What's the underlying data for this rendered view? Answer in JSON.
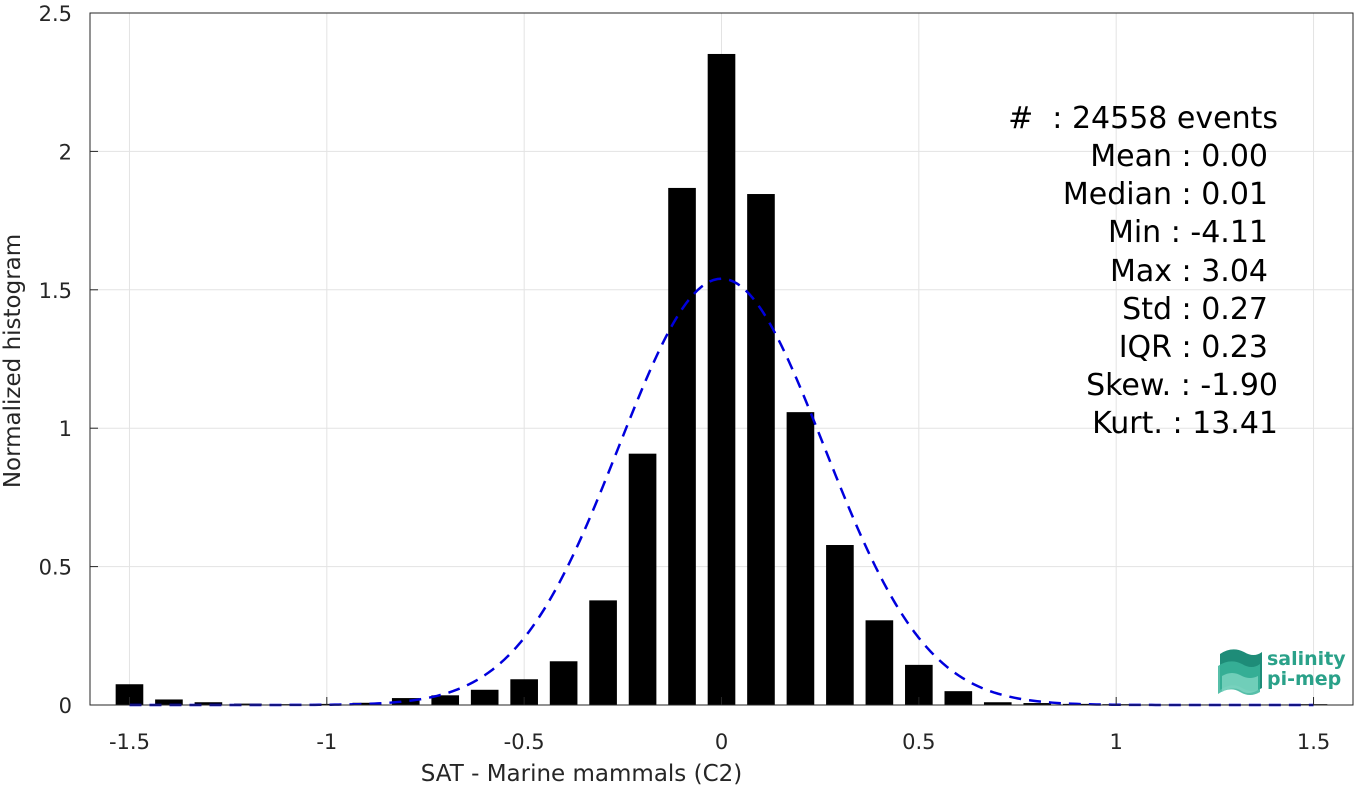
{
  "chart_data": {
    "type": "bar",
    "xlabel": "SAT - Marine mammals (C2)",
    "ylabel": "Normalized histogram",
    "xlim": [
      -1.6,
      1.6
    ],
    "ylim": [
      0,
      2.5
    ],
    "xticks": [
      -1.5,
      -1,
      -0.5,
      0,
      0.5,
      1,
      1.5
    ],
    "xtick_labels": [
      "-1.5",
      "-1",
      "-0.5",
      "0",
      "0.5",
      "1",
      "1.5"
    ],
    "yticks": [
      0,
      0.5,
      1,
      1.5,
      2,
      2.5
    ],
    "ytick_labels": [
      "0",
      "0.5",
      "1",
      "1.5",
      "2",
      "2.5"
    ],
    "grid": true,
    "bin_width": 0.1,
    "bars": {
      "x": [
        -1.5,
        -1.4,
        -1.3,
        -1.2,
        -1.1,
        -1.0,
        -0.9,
        -0.8,
        -0.7,
        -0.6,
        -0.5,
        -0.4,
        -0.3,
        -0.2,
        -0.1,
        0.0,
        0.1,
        0.2,
        0.3,
        0.4,
        0.5,
        0.6,
        0.7,
        0.8,
        0.9,
        1.0,
        1.1,
        1.2,
        1.3,
        1.4,
        1.5
      ],
      "values": [
        0.075,
        0.02,
        0.01,
        0.005,
        0.003,
        0.004,
        0.008,
        0.025,
        0.035,
        0.055,
        0.093,
        0.158,
        0.378,
        0.908,
        1.868,
        2.352,
        1.846,
        1.058,
        0.578,
        0.306,
        0.145,
        0.05,
        0.01,
        0.007,
        0.004,
        0.003,
        0.002,
        0.002,
        0.002,
        0.002,
        0.003
      ]
    },
    "gaussian_fit": {
      "style": "dashed",
      "color": "#0000dd",
      "mean": 0.0,
      "std": 0.26,
      "peak": 1.54
    },
    "bar_color": "#000000",
    "annotations": [
      "#  : 24558 events",
      "Mean : 0.00",
      "Median : 0.01",
      "Min : -4.11",
      "Max : 3.04",
      "Std : 0.27",
      "IQR : 0.23",
      "Skew. : -1.90",
      "Kurt. : 13.41"
    ]
  },
  "logo": {
    "line1": "salinity",
    "line2": "pi-mep"
  }
}
